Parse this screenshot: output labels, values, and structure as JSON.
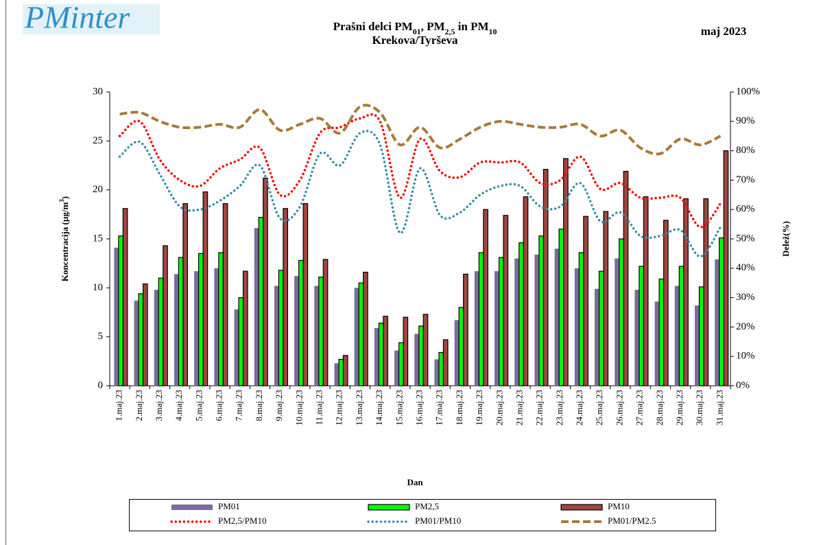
{
  "logo": "PMinter",
  "period": "maj 2023",
  "chart_data": {
    "type": "bar",
    "title": [
      "Prašni delci PM",
      "01",
      ", PM",
      "2,5",
      " in PM",
      "10"
    ],
    "subtitle": "Krekova/Tyrševa",
    "y_label": [
      "Koncentracija  (µg/m",
      "3",
      ")"
    ],
    "y2_label": "Delež(%)",
    "x_label": "Dan",
    "categories": [
      "1.maj.23",
      "2.maj.23",
      "3.maj.23",
      "4.maj.23",
      "5.maj.23",
      "6.maj.23",
      "7.maj.23",
      "8.maj.23",
      "9.maj.23",
      "10.maj.23",
      "11.maj.23",
      "12.maj.23",
      "13.maj.23",
      "14.maj.23",
      "15.maj.23",
      "16.maj.23",
      "17.maj.23",
      "18.maj.23",
      "19.maj.23",
      "20.maj.23",
      "21.maj.23",
      "22.maj.23",
      "23.maj.23",
      "24.maj.23",
      "25.maj.23",
      "26.maj.23",
      "27.maj.23",
      "28.maj.23",
      "29.maj.23",
      "30.maj.23",
      "31.maj.23"
    ],
    "ylim": [
      0,
      30
    ],
    "yticks": [
      0,
      5,
      10,
      15,
      20,
      25,
      30
    ],
    "y2lim": [
      0,
      100
    ],
    "y2ticks": [
      {
        "value": 0,
        "label": "0%"
      },
      {
        "value": 10,
        "label": "10%"
      },
      {
        "value": 20,
        "label": "20%"
      },
      {
        "value": 30,
        "label": "30%"
      },
      {
        "value": 40,
        "label": "40%"
      },
      {
        "value": 50,
        "label": "50%"
      },
      {
        "value": 60,
        "label": "60%"
      },
      {
        "value": 70,
        "label": "70%"
      },
      {
        "value": 80,
        "label": "80%"
      },
      {
        "value": 90,
        "label": "90%"
      },
      {
        "value": 100,
        "label": "100%"
      }
    ],
    "series": [
      {
        "name": "PM01",
        "type": "bar",
        "color": "#7d6a9e",
        "border": false,
        "values": [
          14.1,
          8.7,
          9.8,
          11.4,
          11.7,
          12.0,
          7.8,
          16.1,
          10.2,
          11.2,
          10.2,
          2.3,
          10.0,
          5.9,
          3.6,
          5.3,
          2.7,
          6.7,
          11.7,
          11.7,
          13.0,
          13.4,
          14.0,
          12.0,
          9.9,
          13.0,
          9.8,
          8.6,
          10.2,
          8.2,
          12.9
        ]
      },
      {
        "name": "PM2,5",
        "type": "bar",
        "color": "#00ff00",
        "border": true,
        "values": [
          15.3,
          9.4,
          11.0,
          13.1,
          13.5,
          13.6,
          9.0,
          17.2,
          11.8,
          12.8,
          11.1,
          2.7,
          10.5,
          6.4,
          4.4,
          6.1,
          3.4,
          8.0,
          13.6,
          13.1,
          14.6,
          15.3,
          16.0,
          13.6,
          11.7,
          15.0,
          12.2,
          10.9,
          12.2,
          10.1,
          15.1
        ]
      },
      {
        "name": "PM10",
        "type": "bar",
        "color": "#a0463f",
        "border": true,
        "values": [
          18.1,
          10.4,
          14.3,
          18.6,
          19.8,
          18.6,
          11.7,
          21.2,
          18.1,
          18.6,
          12.9,
          3.1,
          11.6,
          7.1,
          7.0,
          7.3,
          4.7,
          11.4,
          18.0,
          17.4,
          19.3,
          22.1,
          23.2,
          17.3,
          17.8,
          21.9,
          19.3,
          16.9,
          19.1,
          19.1,
          24.0
        ]
      },
      {
        "name": "PM2,5/PM10",
        "type": "line",
        "axis": "y2",
        "color": "#ff0000",
        "style": "dotted",
        "values": [
          85,
          90,
          77,
          70,
          68,
          74,
          77,
          81,
          65,
          70,
          86,
          88,
          91,
          90,
          64,
          84,
          73,
          71,
          76,
          76,
          76,
          69,
          70,
          78,
          67,
          69,
          64,
          64,
          64,
          54,
          62
        ]
      },
      {
        "name": "PM01/PM10",
        "type": "line",
        "axis": "y2",
        "color": "#3a8fa3",
        "style": "dotted",
        "values": [
          78,
          83,
          72,
          61,
          60,
          63,
          68,
          75,
          57,
          61,
          79,
          75,
          86,
          82,
          52,
          74,
          58,
          59,
          65,
          68,
          68,
          61,
          61,
          69,
          56,
          59,
          51,
          51,
          53,
          44,
          54
        ]
      },
      {
        "name": "PM01/PM2.5",
        "type": "line",
        "axis": "y2",
        "color": "#a57c3a",
        "style": "dashed",
        "values": [
          92.5,
          93,
          90,
          88,
          88,
          89,
          88,
          94,
          87,
          89,
          91,
          86,
          95,
          93,
          82,
          88,
          81,
          84,
          88,
          90,
          89,
          88,
          88,
          89,
          85,
          87,
          81,
          79,
          84,
          82,
          85
        ]
      }
    ]
  }
}
